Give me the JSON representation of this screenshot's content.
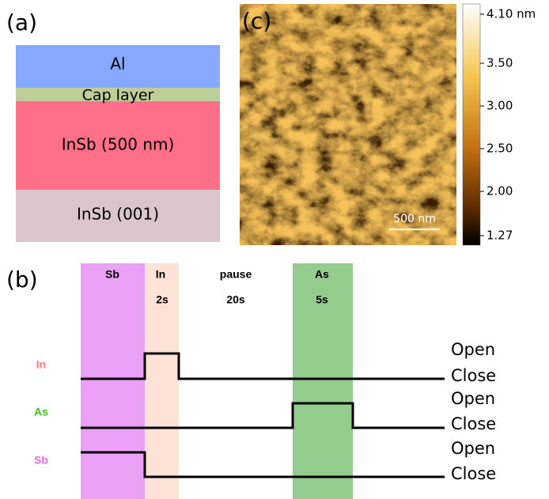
{
  "panels": {
    "a": "(a)",
    "b": "(b)",
    "c": "(c)"
  },
  "layers": [
    "Al",
    "Cap layer",
    "InSb (500 nm)",
    "InSb (001)"
  ],
  "afm": {
    "scale_bar": "500 nm",
    "colorbar": [
      "4.10 nm",
      "3.50",
      "3.00",
      "2.50",
      "2.00",
      "1.27"
    ]
  },
  "timing": {
    "columns": [
      {
        "label": "Sb"
      },
      {
        "label": "In",
        "duration": "2s"
      },
      {
        "label": "pause",
        "duration": "20s"
      },
      {
        "label": "As",
        "duration": "5s"
      }
    ],
    "signals": [
      {
        "name": "In",
        "open": "Open",
        "close": "Close"
      },
      {
        "name": "As",
        "open": "Open",
        "close": "Close"
      },
      {
        "name": "Sb",
        "open": "Open",
        "close": "Close"
      }
    ]
  }
}
